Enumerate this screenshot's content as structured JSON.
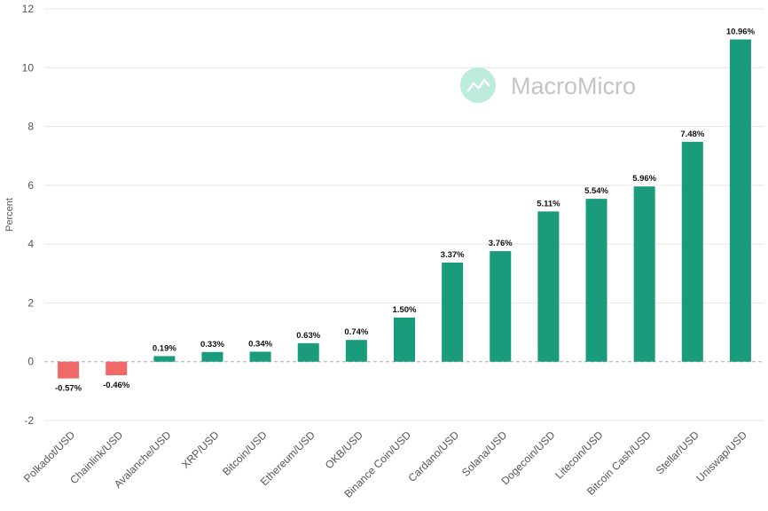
{
  "chart_data": {
    "type": "bar",
    "categories": [
      "Polkadot/USD",
      "Chainlink/USD",
      "Avalanche/USD",
      "XRP/USD",
      "Bitcoin/USD",
      "Ethereum/USD",
      "OKB/USD",
      "Binance Coin/USD",
      "Cardano/USD",
      "Solana/USD",
      "Dogecoin/USD",
      "Litecoin/USD",
      "Bitcoin Cash/USD",
      "Stellar/USD",
      "Uniswap/USD"
    ],
    "values": [
      -0.57,
      -0.46,
      0.19,
      0.33,
      0.34,
      0.63,
      0.74,
      1.5,
      3.37,
      3.76,
      5.11,
      5.54,
      5.96,
      7.48,
      10.96
    ],
    "data_labels": [
      "-0.57%",
      "-0.46%",
      "0.19%",
      "0.33%",
      "0.34%",
      "0.63%",
      "0.74%",
      "1.50%",
      "3.37%",
      "3.76%",
      "5.11%",
      "5.54%",
      "5.96%",
      "7.48%",
      "10.96%"
    ],
    "ylabel": "Percent",
    "ylim": [
      -2,
      12
    ],
    "yticks": [
      -2,
      0,
      2,
      4,
      6,
      8,
      10,
      12
    ],
    "grid": true,
    "colors": {
      "positive": "#1a9b7b",
      "negative": "#f06868",
      "gridline": "#e6e6e6",
      "zero_line": "#aaaaaa"
    }
  },
  "watermark": {
    "text": "MacroMicro",
    "logo_color": "#bdebdd"
  }
}
